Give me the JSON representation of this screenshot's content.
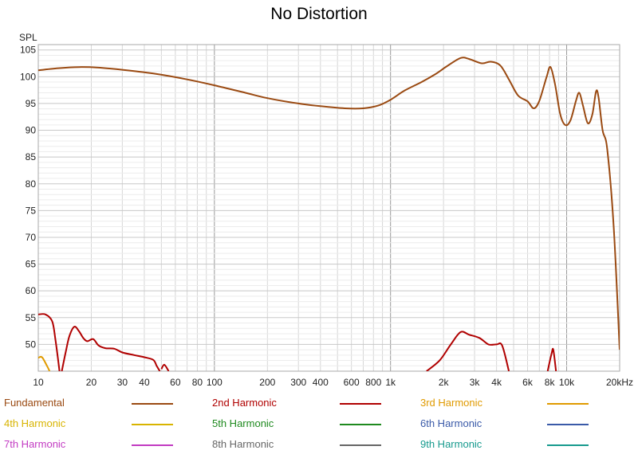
{
  "chart_data": {
    "type": "line",
    "title": "No Distortion",
    "ylabel": "SPL",
    "xlabel": "",
    "x_scale": "log",
    "x_unit": "kHz",
    "xlim": [
      10,
      20000
    ],
    "ylim": [
      45,
      106
    ],
    "grid": true,
    "y_ticks": [
      105,
      100,
      95,
      90,
      85,
      80,
      75,
      70,
      65,
      60,
      55,
      50
    ],
    "x_ticks": [
      {
        "value": 10,
        "label": "10"
      },
      {
        "value": 20,
        "label": "20"
      },
      {
        "value": 30,
        "label": "30"
      },
      {
        "value": 40,
        "label": "40"
      },
      {
        "value": 60,
        "label": "60"
      },
      {
        "value": 80,
        "label": "80"
      },
      {
        "value": 100,
        "label": "100"
      },
      {
        "value": 200,
        "label": "200"
      },
      {
        "value": 300,
        "label": "300"
      },
      {
        "value": 400,
        "label": "400"
      },
      {
        "value": 600,
        "label": "600"
      },
      {
        "value": 800,
        "label": "800"
      },
      {
        "value": 1000,
        "label": "1k"
      },
      {
        "value": 2000,
        "label": "2k"
      },
      {
        "value": 3000,
        "label": "3k"
      },
      {
        "value": 4000,
        "label": "4k"
      },
      {
        "value": 6000,
        "label": "6k"
      },
      {
        "value": 8000,
        "label": "8k"
      },
      {
        "value": 10000,
        "label": "10k"
      },
      {
        "value": 20000,
        "label": "20kHz"
      }
    ],
    "legend_position": "bottom",
    "series": [
      {
        "name": "Fundamental",
        "color": "#9a4a12",
        "points": [
          [
            10,
            101.2
          ],
          [
            13,
            101.6
          ],
          [
            17,
            101.8
          ],
          [
            22,
            101.7
          ],
          [
            30,
            101.3
          ],
          [
            45,
            100.6
          ],
          [
            70,
            99.5
          ],
          [
            100,
            98.4
          ],
          [
            150,
            97.0
          ],
          [
            200,
            96.0
          ],
          [
            300,
            95.0
          ],
          [
            400,
            94.5
          ],
          [
            550,
            94.1
          ],
          [
            700,
            94.1
          ],
          [
            850,
            94.6
          ],
          [
            1000,
            95.7
          ],
          [
            1200,
            97.4
          ],
          [
            1500,
            99.0
          ],
          [
            1800,
            100.5
          ],
          [
            2100,
            102.0
          ],
          [
            2500,
            103.5
          ],
          [
            2800,
            103.3
          ],
          [
            3300,
            102.5
          ],
          [
            3700,
            102.8
          ],
          [
            4200,
            102.1
          ],
          [
            4700,
            99.5
          ],
          [
            5300,
            96.5
          ],
          [
            6000,
            95.4
          ],
          [
            6500,
            94.1
          ],
          [
            7000,
            95.5
          ],
          [
            7700,
            100.0
          ],
          [
            8100,
            101.8
          ],
          [
            8600,
            98.5
          ],
          [
            9200,
            93.0
          ],
          [
            9800,
            91.0
          ],
          [
            10500,
            91.8
          ],
          [
            11300,
            95.5
          ],
          [
            11800,
            97.0
          ],
          [
            12400,
            94.5
          ],
          [
            13200,
            91.3
          ],
          [
            14000,
            93.0
          ],
          [
            14700,
            97.3
          ],
          [
            15200,
            96.0
          ],
          [
            16000,
            90.0
          ],
          [
            17000,
            86.5
          ],
          [
            18500,
            72.0
          ],
          [
            20000,
            49.0
          ]
        ]
      },
      {
        "name": "2nd Harmonic",
        "color": "#b00000",
        "segments": [
          [
            [
              10,
              55.6
            ],
            [
              11,
              55.6
            ],
            [
              12,
              54.3
            ],
            [
              12.5,
              51.0
            ],
            [
              13.2,
              45.0
            ]
          ],
          [
            [
              13.6,
              45.0
            ],
            [
              14.3,
              48.5
            ],
            [
              15,
              51.5
            ],
            [
              16,
              53.3
            ],
            [
              17,
              52.5
            ],
            [
              18,
              51.2
            ],
            [
              19,
              50.6
            ],
            [
              20.5,
              51.0
            ],
            [
              22,
              49.8
            ],
            [
              24,
              49.3
            ],
            [
              27,
              49.2
            ],
            [
              30,
              48.5
            ],
            [
              35,
              48.0
            ],
            [
              40,
              47.6
            ],
            [
              45,
              47.1
            ],
            [
              47,
              46.0
            ],
            [
              49,
              45.0
            ]
          ],
          [
            [
              50,
              45.4
            ],
            [
              52,
              46.2
            ],
            [
              55,
              45.0
            ]
          ],
          [
            [
              1600,
              45.0
            ],
            [
              1900,
              47.0
            ],
            [
              2200,
              50.0
            ],
            [
              2500,
              52.3
            ],
            [
              2800,
              51.8
            ],
            [
              3200,
              51.2
            ],
            [
              3600,
              50.0
            ],
            [
              4000,
              50.0
            ],
            [
              4300,
              49.8
            ],
            [
              4700,
              45.0
            ]
          ],
          [
            [
              7800,
              45.0
            ],
            [
              8200,
              48.2
            ],
            [
              8400,
              49.0
            ],
            [
              8700,
              45.0
            ]
          ]
        ]
      },
      {
        "name": "3rd Harmonic",
        "color": "#e09a00",
        "segments": [
          [
            [
              10,
              47.5
            ],
            [
              10.5,
              47.6
            ],
            [
              11.2,
              46.0
            ],
            [
              11.6,
              45.0
            ]
          ]
        ]
      },
      {
        "name": "4th Harmonic",
        "color": "#d8b400",
        "segments": []
      },
      {
        "name": "5th Harmonic",
        "color": "#1f8a1f",
        "segments": []
      },
      {
        "name": "6th Harmonic",
        "color": "#3a5aa8",
        "segments": []
      },
      {
        "name": "7th Harmonic",
        "color": "#c23ac2",
        "segments": []
      },
      {
        "name": "8th Harmonic",
        "color": "#666666",
        "segments": []
      },
      {
        "name": "9th Harmonic",
        "color": "#179a8e",
        "segments": []
      }
    ]
  }
}
